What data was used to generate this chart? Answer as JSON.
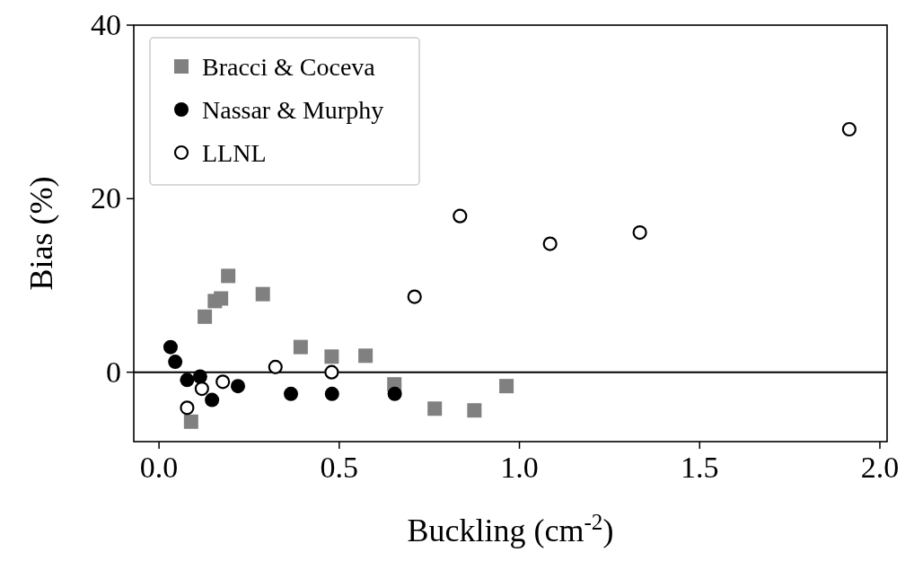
{
  "chart_data": {
    "type": "scatter",
    "xlabel": "Buckling (cm$^{-2}$)",
    "ylabel": "Bias (%)",
    "xlim": [
      -0.07,
      2.02
    ],
    "ylim": [
      -8,
      40
    ],
    "xticks": [
      {
        "value": 0,
        "label": "0.0"
      },
      {
        "value": 0.5,
        "label": "0.5"
      },
      {
        "value": 1,
        "label": "1.0"
      },
      {
        "value": 1.5,
        "label": "1.5"
      },
      {
        "value": 2,
        "label": "2.0"
      }
    ],
    "yticks": [
      0,
      20,
      40
    ],
    "grid": false,
    "legend": "top left",
    "ref_lines": [
      {
        "axis": "y",
        "value": 0,
        "color": "#000000"
      }
    ],
    "series": [
      {
        "name": "Bracci & Coceva",
        "color": "#808080",
        "marker": "square",
        "x": [
          0.192,
          0.172,
          0.155,
          0.127,
          0.288,
          0.393,
          0.479,
          0.573,
          0.653,
          0.089,
          0.765,
          0.875,
          0.964
        ],
        "values": [
          11.1,
          8.5,
          8.2,
          6.4,
          9.0,
          2.9,
          1.8,
          1.9,
          -1.4,
          -5.7,
          -4.2,
          -4.4,
          -1.6
        ]
      },
      {
        "name": "Nassar & Murphy",
        "color": "#000000",
        "marker": "circle",
        "x": [
          0.032,
          0.045,
          0.078,
          0.114,
          0.147,
          0.219,
          0.366,
          0.48,
          0.654
        ],
        "values": [
          2.9,
          1.2,
          -0.9,
          -0.5,
          -3.2,
          -1.6,
          -2.5,
          -2.5,
          -2.5
        ]
      },
      {
        "name": "LLNL",
        "color": "#ffffff",
        "marker": "circle",
        "x": [
          0.078,
          0.119,
          0.177,
          0.323,
          0.479,
          0.709,
          0.835,
          1.085,
          1.334,
          1.915
        ],
        "values": [
          -4.1,
          -1.9,
          -1.1,
          0.6,
          0.0,
          8.7,
          18.0,
          14.8,
          16.1,
          28.0
        ]
      }
    ]
  }
}
